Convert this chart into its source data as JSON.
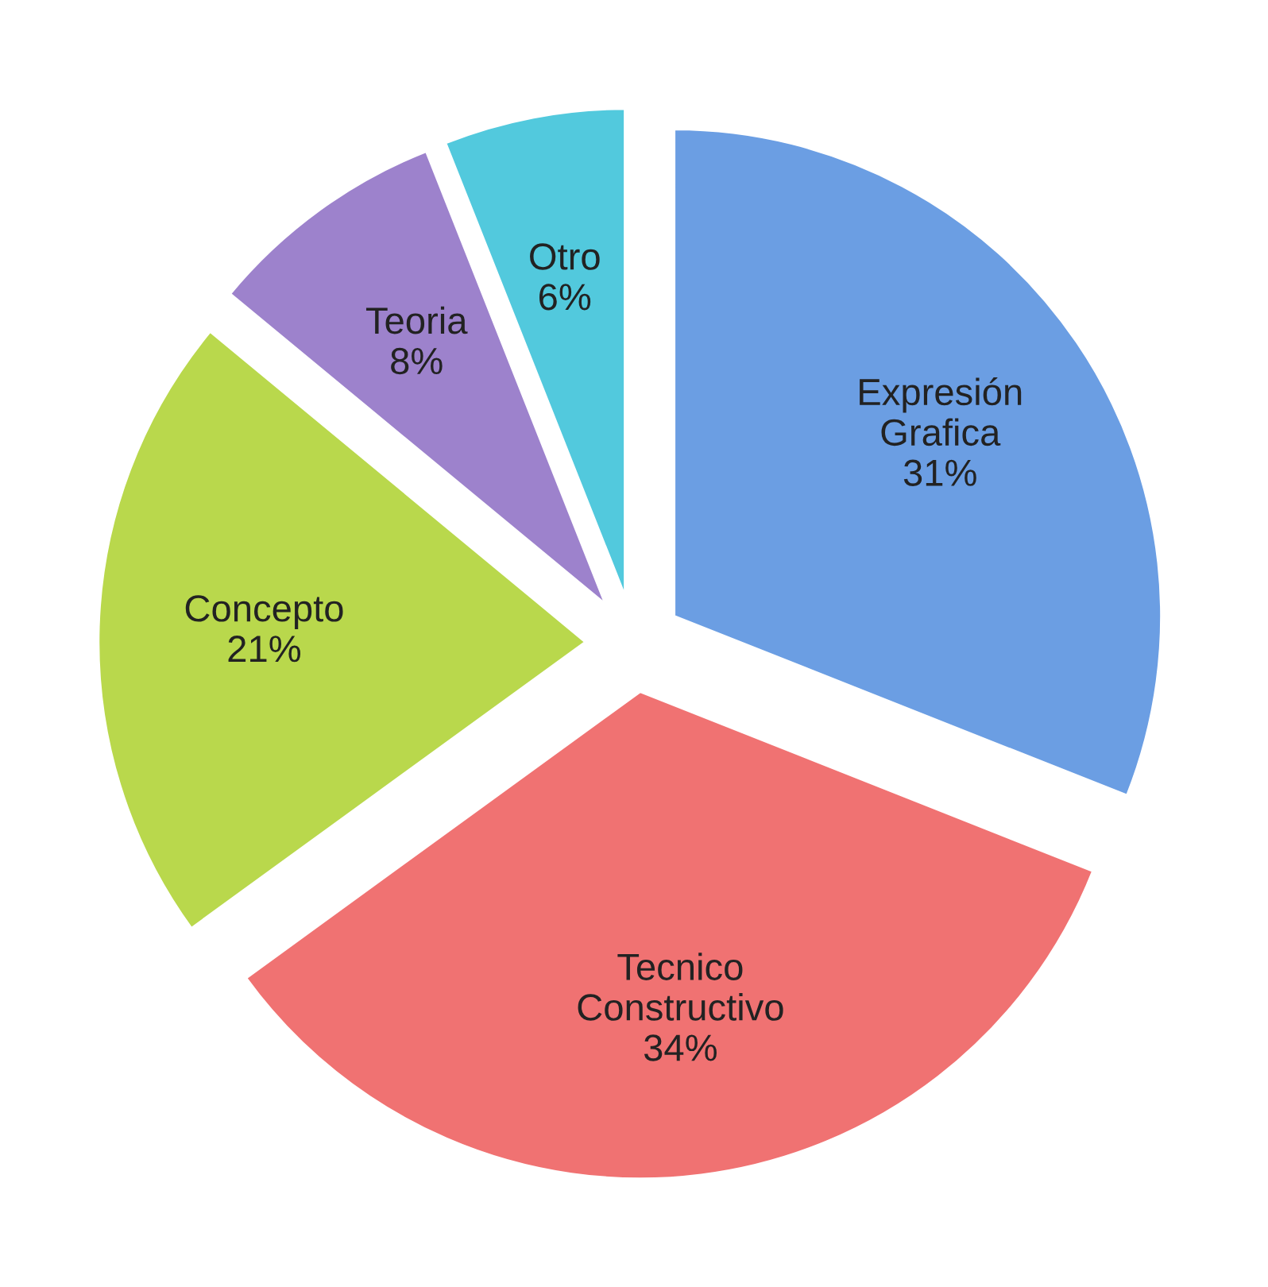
{
  "chart_data": {
    "type": "pie",
    "categories": [
      "Expresión\nGrafica",
      "Tecnico\nConstructivo",
      "Concepto",
      "Teoria",
      "Otro"
    ],
    "values": [
      31,
      34,
      21,
      8,
      6
    ],
    "value_labels": [
      "31%",
      "34%",
      "21%",
      "8%",
      "6%"
    ],
    "colors": [
      "#6b9ee3",
      "#f07272",
      "#b9d84c",
      "#9d82cc",
      "#52c9dd"
    ],
    "legend": false
  }
}
